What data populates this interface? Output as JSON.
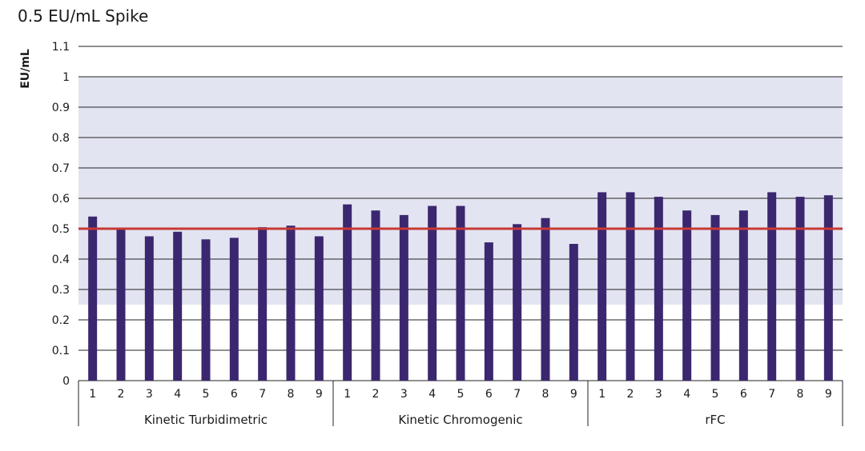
{
  "chart_data": {
    "type": "bar",
    "title": "0.5 EU/mL Spike",
    "ylabel": "EU/mL",
    "xlabel": "",
    "ylim": [
      0,
      1.1
    ],
    "yticks": [
      "0",
      "0.1",
      "0.2",
      "0.3",
      "0.4",
      "0.5",
      "0.6",
      "0.7",
      "0.8",
      "0.9",
      "1",
      "1.1"
    ],
    "yticks_values": [
      0,
      0.1,
      0.2,
      0.3,
      0.4,
      0.5,
      0.6,
      0.7,
      0.8,
      0.9,
      1.0,
      1.1
    ],
    "grid": true,
    "shaded_band": [
      0.25,
      1.0
    ],
    "reference_line": 0.5,
    "groups": [
      {
        "name": "Kinetic Turbidimetric",
        "categories": [
          "1",
          "2",
          "3",
          "4",
          "5",
          "6",
          "7",
          "8",
          "9"
        ],
        "values": [
          0.54,
          0.5,
          0.475,
          0.49,
          0.465,
          0.47,
          0.505,
          0.51,
          0.475
        ]
      },
      {
        "name": "Kinetic Chromogenic",
        "categories": [
          "1",
          "2",
          "3",
          "4",
          "5",
          "6",
          "7",
          "8",
          "9"
        ],
        "values": [
          0.58,
          0.56,
          0.545,
          0.575,
          0.575,
          0.455,
          0.515,
          0.535,
          0.45
        ]
      },
      {
        "name": "rFC",
        "categories": [
          "1",
          "2",
          "3",
          "4",
          "5",
          "6",
          "7",
          "8",
          "9"
        ],
        "values": [
          0.62,
          0.62,
          0.605,
          0.56,
          0.545,
          0.56,
          0.62,
          0.605,
          0.61
        ]
      }
    ],
    "colors": {
      "bar": "#3b2770",
      "band": "#e3e4f1",
      "grid": "#222222",
      "reference": "#c73a34"
    }
  }
}
